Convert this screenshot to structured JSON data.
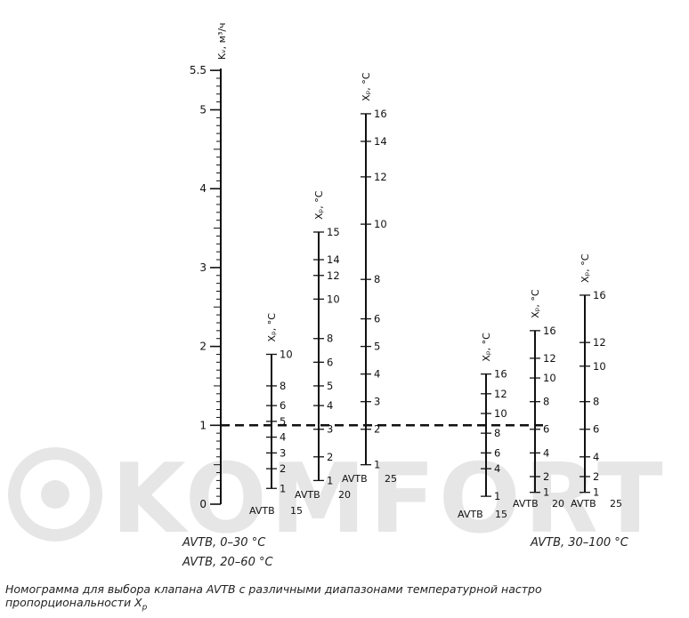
{
  "watermark": {
    "text": "KOMFORT",
    "color": "#e6e6e6"
  },
  "main_axis": {
    "title": "Kᵥ, м³/ч",
    "min": 0,
    "max": 5.5,
    "tick_labels": [
      "0",
      "1",
      "2",
      "3",
      "4",
      "5",
      "5.5"
    ]
  },
  "scales": [
    {
      "id": "avtb15-a",
      "model": "AVTB",
      "size": "15",
      "title": "Xₚ, °C",
      "ticks": [
        [
          "1",
          0.2
        ],
        [
          "2",
          0.45
        ],
        [
          "3",
          0.65
        ],
        [
          "4",
          0.85
        ],
        [
          "5",
          1.05
        ],
        [
          "6",
          1.25
        ],
        [
          "8",
          1.5
        ],
        [
          "10",
          1.9
        ]
      ]
    },
    {
      "id": "avtb20-a",
      "model": "AVTB",
      "size": "20",
      "title": "Xₚ, °C",
      "ticks": [
        [
          "1",
          0.3
        ],
        [
          "2",
          0.6
        ],
        [
          "3",
          0.95
        ],
        [
          "4",
          1.25
        ],
        [
          "5",
          1.5
        ],
        [
          "6",
          1.8
        ],
        [
          "8",
          2.1
        ],
        [
          "10",
          2.6
        ],
        [
          "12",
          2.9
        ],
        [
          "14",
          3.1
        ],
        [
          "15",
          3.45
        ]
      ]
    },
    {
      "id": "avtb25-a",
      "model": "AVTB",
      "size": "25",
      "title": "Xₚ, °C",
      "ticks": [
        [
          "1",
          0.5
        ],
        [
          "2",
          0.95
        ],
        [
          "3",
          1.3
        ],
        [
          "4",
          1.65
        ],
        [
          "5",
          2.0
        ],
        [
          "6",
          2.35
        ],
        [
          "8",
          2.85
        ],
        [
          "10",
          3.55
        ],
        [
          "12",
          4.15
        ],
        [
          "14",
          4.6
        ],
        [
          "16",
          4.95
        ]
      ]
    },
    {
      "id": "avtb15-b",
      "model": "AVTB",
      "size": "15",
      "title": "Xₚ, °C",
      "ticks": [
        [
          "1",
          0.1
        ],
        [
          "4",
          0.45
        ],
        [
          "6",
          0.65
        ],
        [
          "8",
          0.9
        ],
        [
          "10",
          1.15
        ],
        [
          "12",
          1.4
        ],
        [
          "16",
          1.65
        ]
      ]
    },
    {
      "id": "avtb20-b",
      "model": "AVTB",
      "size": "20",
      "title": "Xₚ, °C",
      "ticks": [
        [
          "1",
          0.15
        ],
        [
          "2",
          0.35
        ],
        [
          "4",
          0.65
        ],
        [
          "6",
          0.95
        ],
        [
          "8",
          1.3
        ],
        [
          "10",
          1.6
        ],
        [
          "12",
          1.85
        ],
        [
          "16",
          2.2
        ]
      ]
    },
    {
      "id": "avtb25-b",
      "model": "AVTB",
      "size": "25",
      "title": "Xₚ, °C",
      "ticks": [
        [
          "1",
          0.15
        ],
        [
          "2",
          0.35
        ],
        [
          "4",
          0.6
        ],
        [
          "6",
          0.95
        ],
        [
          "8",
          1.3
        ],
        [
          "10",
          1.75
        ],
        [
          "12",
          2.05
        ],
        [
          "16",
          2.65
        ]
      ]
    }
  ],
  "reference_line": {
    "kv": 1.0
  },
  "group_labels": {
    "left_line1": "AVTB, 0–30 °C",
    "left_line2": "AVTB, 20–60 °C",
    "right": "AVTB, 30–100 °C"
  },
  "caption": {
    "line1": "Номограмма для выбора клапана AVTB с различными диапазонами температурной настро",
    "line2": "пропорциональности X",
    "line2_sub": "p"
  }
}
